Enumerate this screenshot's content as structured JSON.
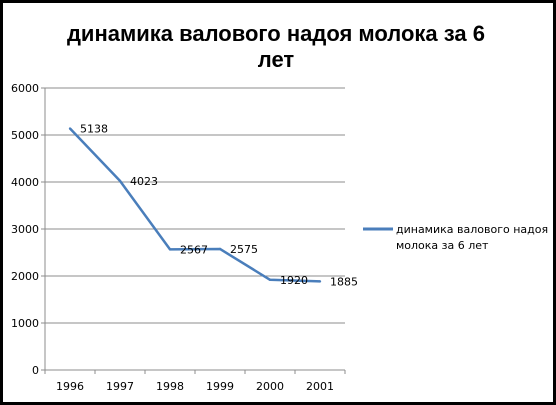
{
  "chart_data": {
    "type": "line",
    "title_line1": "динамика валового надоя молока за 6",
    "title_line2": "лет",
    "categories": [
      "1996",
      "1997",
      "1998",
      "1999",
      "2000",
      "2001"
    ],
    "series": [
      {
        "name_line1": "динамика валового надоя",
        "name_line2": "молока за 6 лет",
        "values": [
          5138,
          4023,
          2567,
          2575,
          1920,
          1885
        ],
        "color": "#4a7ebb"
      }
    ],
    "data_labels": [
      "5138",
      "4023",
      "2567",
      "2575",
      "1920",
      "1885"
    ],
    "y_ticks": [
      "0",
      "1000",
      "2000",
      "3000",
      "4000",
      "5000",
      "6000"
    ],
    "ylim": [
      0,
      6000
    ],
    "grid": true,
    "legend_position": "right"
  }
}
